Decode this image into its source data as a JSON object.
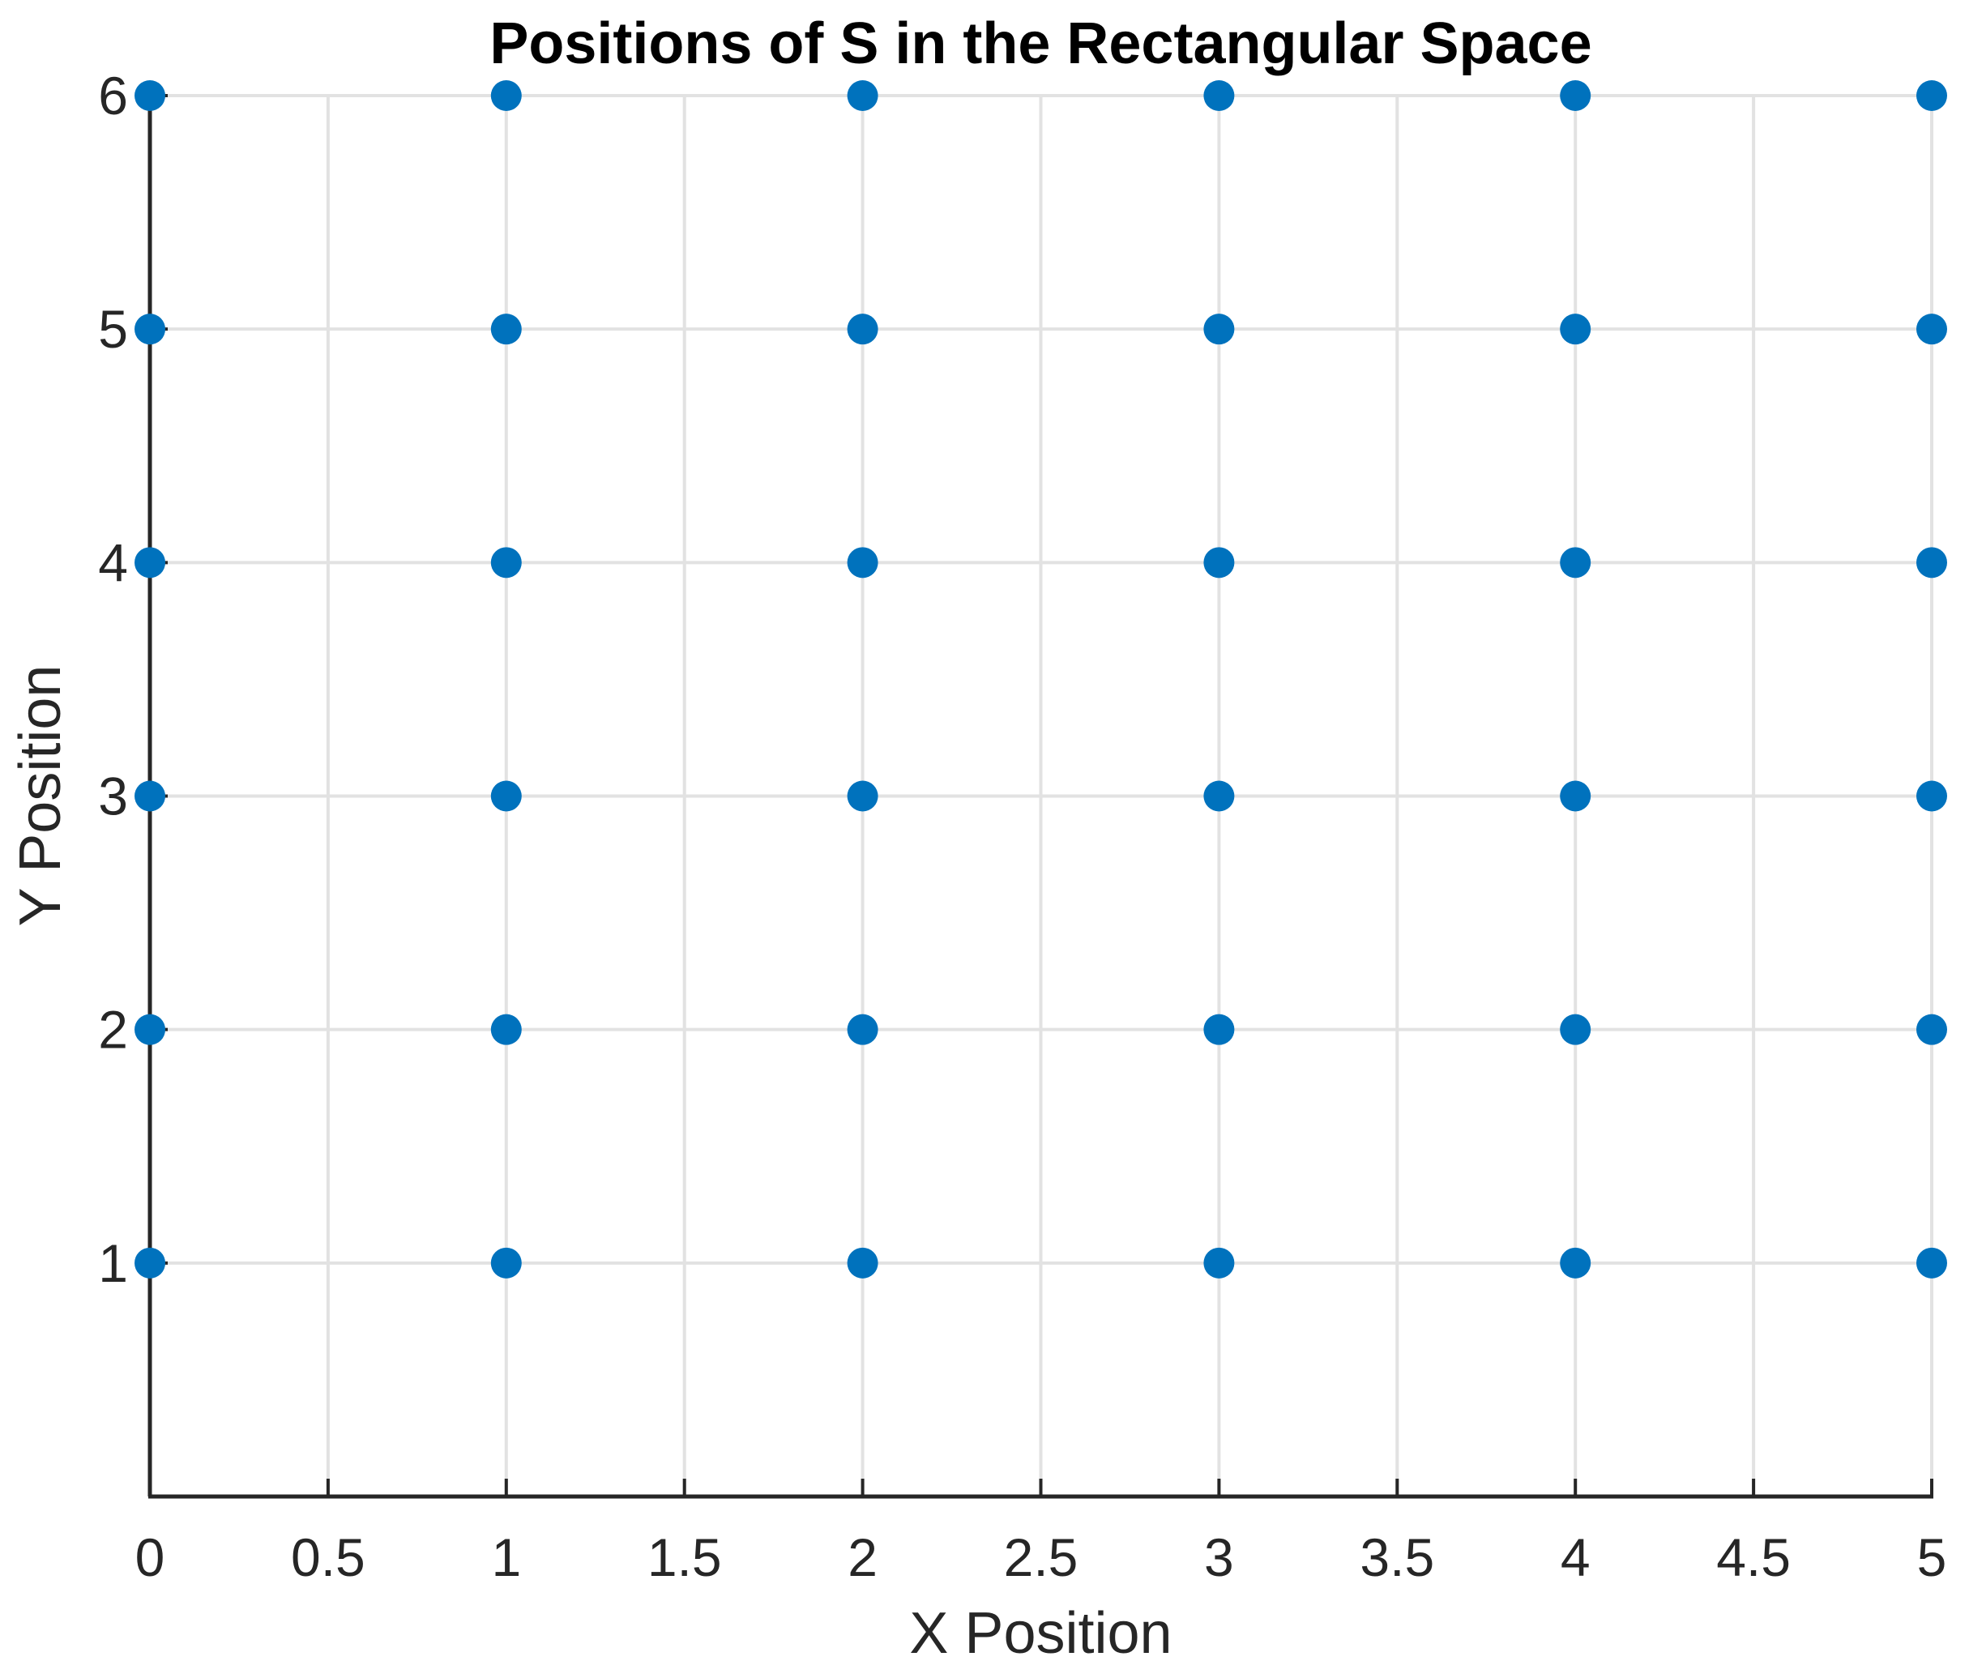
{
  "figure": {
    "background": "#ffffff"
  },
  "chart_data": {
    "type": "scatter",
    "title": "Positions of S in the Rectangular Space",
    "xlabel": "X Position",
    "ylabel": "Y Position",
    "xlim": [
      0,
      5
    ],
    "ylim": [
      0,
      6
    ],
    "xtick_values": [
      0,
      0.5,
      1,
      1.5,
      2,
      2.5,
      3,
      3.5,
      4,
      4.5,
      5
    ],
    "xtick_labels": [
      "0",
      "0.5",
      "1",
      "1.5",
      "2",
      "2.5",
      "3",
      "3.5",
      "4",
      "4.5",
      "5"
    ],
    "ytick_values": [
      1,
      2,
      3,
      4,
      5,
      6
    ],
    "ytick_labels": [
      "1",
      "2",
      "3",
      "4",
      "5",
      "6"
    ],
    "grid": true,
    "legend": "none",
    "marker": {
      "shape": "circle",
      "color": "#0072BD",
      "radius_px": 19
    },
    "colors": {
      "axis": "#262626",
      "grid": "#E2E2E2",
      "tick_text": "#262626",
      "title_text": "#000000",
      "marker": "#0072BD"
    },
    "points": [
      [
        0,
        1
      ],
      [
        1,
        1
      ],
      [
        2,
        1
      ],
      [
        3,
        1
      ],
      [
        4,
        1
      ],
      [
        5,
        1
      ],
      [
        0,
        2
      ],
      [
        1,
        2
      ],
      [
        2,
        2
      ],
      [
        3,
        2
      ],
      [
        4,
        2
      ],
      [
        5,
        2
      ],
      [
        0,
        3
      ],
      [
        1,
        3
      ],
      [
        2,
        3
      ],
      [
        3,
        3
      ],
      [
        4,
        3
      ],
      [
        5,
        3
      ],
      [
        0,
        4
      ],
      [
        1,
        4
      ],
      [
        2,
        4
      ],
      [
        3,
        4
      ],
      [
        4,
        4
      ],
      [
        5,
        4
      ],
      [
        0,
        5
      ],
      [
        1,
        5
      ],
      [
        2,
        5
      ],
      [
        3,
        5
      ],
      [
        4,
        5
      ],
      [
        5,
        5
      ],
      [
        0,
        6
      ],
      [
        1,
        6
      ],
      [
        2,
        6
      ],
      [
        3,
        6
      ],
      [
        4,
        6
      ],
      [
        5,
        6
      ]
    ]
  }
}
